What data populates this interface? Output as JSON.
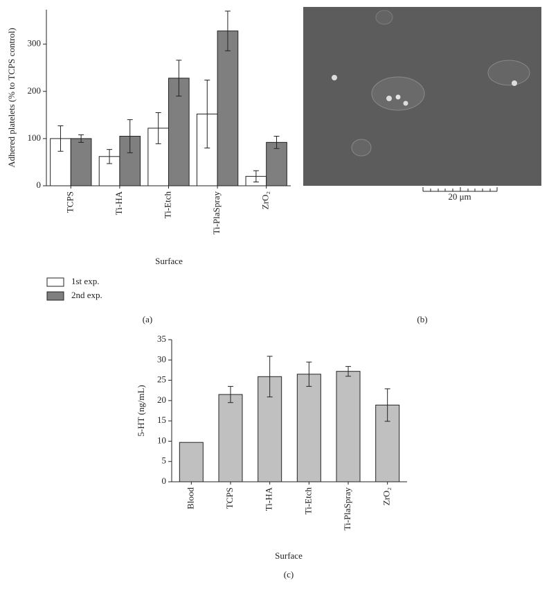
{
  "chart_data": [
    {
      "type": "grouped_bar_error",
      "panel_label": "(a)",
      "x_label": "Surface",
      "y_label": "Adhered platelets (% to TCPS control)",
      "categories": [
        "TCPS",
        "Ti-HA",
        "Ti-Etch",
        "Ti-PlaSpray",
        "ZrO₂"
      ],
      "series": [
        {
          "name": "1st exp.",
          "color": "#ffffff",
          "values": [
            100,
            62,
            122,
            152,
            20
          ],
          "errors": [
            27,
            15,
            33,
            72,
            12
          ]
        },
        {
          "name": "2nd exp.",
          "color": "#7f7f7f",
          "values": [
            100,
            105,
            228,
            328,
            92
          ],
          "errors": [
            8,
            35,
            38,
            42,
            13
          ]
        }
      ],
      "ylim": [
        0,
        373
      ],
      "yticks": [
        0,
        100,
        200,
        300
      ]
    },
    {
      "type": "bar_error",
      "panel_label": "(c)",
      "x_label": "Surface",
      "y_label": "5-HT (ng/mL)",
      "categories": [
        "Blood",
        "TCPS",
        "Ti-HA",
        "Ti-Etch",
        "Ti-PlaSpray",
        "ZrO₂"
      ],
      "series": [
        {
          "color": "#c0c0c0",
          "values": [
            9.7,
            21.5,
            25.9,
            26.5,
            27.2,
            18.9
          ],
          "errors": [
            null,
            2,
            5,
            3,
            1.2,
            4
          ]
        }
      ],
      "ylim": [
        0,
        35
      ],
      "yticks": [
        0,
        5,
        10,
        15,
        20,
        25,
        30,
        35
      ]
    }
  ],
  "image_panel": {
    "panel_label": "(b)",
    "scale_bar_label": "20 μm"
  }
}
